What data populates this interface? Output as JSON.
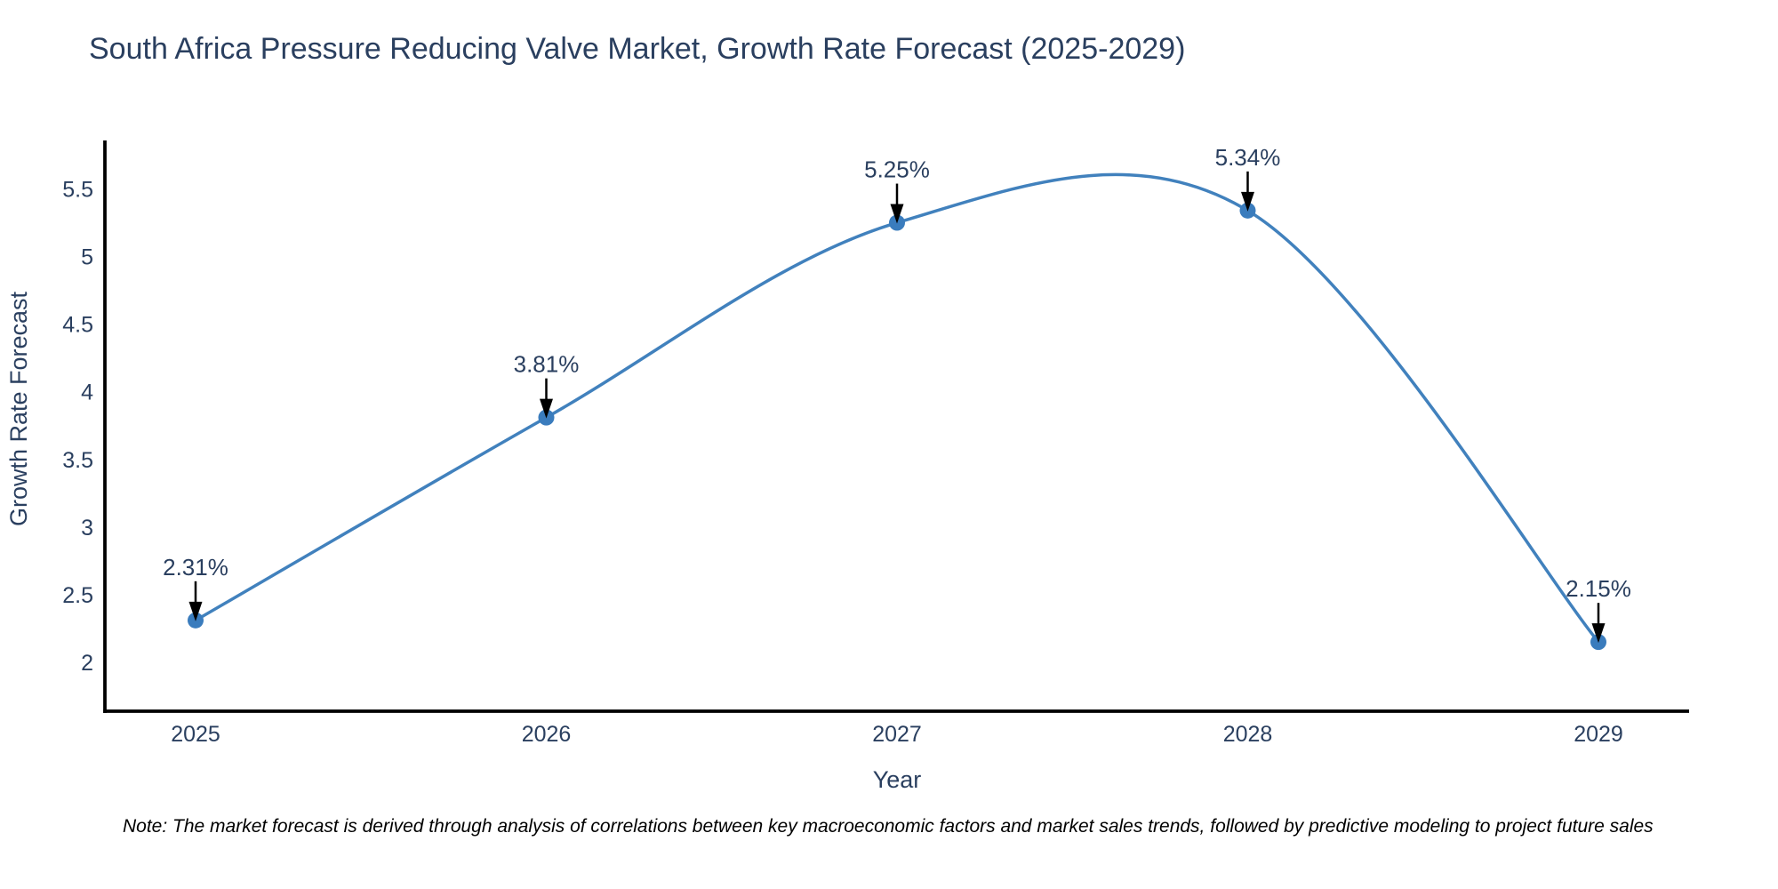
{
  "chart": {
    "title": "South Africa Pressure Reducing Valve Market, Growth Rate Forecast (2025-2029)",
    "xlabel": "Year",
    "ylabel": "Growth Rate Forecast"
  },
  "chart_data": {
    "type": "line",
    "title": "South Africa Pressure Reducing Valve Market, Growth Rate Forecast (2025-2029)",
    "xlabel": "Year",
    "ylabel": "Growth Rate Forecast",
    "line_shape": "spline",
    "grid": false,
    "legend": "none",
    "x": [
      2025,
      2026,
      2027,
      2028,
      2029
    ],
    "values": [
      2.31,
      3.81,
      5.25,
      5.34,
      2.15
    ],
    "point_labels": [
      "2.31%",
      "3.81%",
      "5.25%",
      "5.34%",
      "2.15%"
    ],
    "x_ticks": [
      2025,
      2026,
      2027,
      2028,
      2029
    ],
    "y_ticks": [
      2,
      2.5,
      3,
      3.5,
      4,
      4.5,
      5,
      5.5
    ],
    "xlim": [
      2024.74,
      2029.26
    ],
    "ylim": [
      1.64,
      5.85
    ],
    "colors": {
      "line": "#4181bd",
      "marker": "#3a7cbd",
      "arrow": "#000000",
      "axis": "#000000",
      "text": "#2a3f5f"
    }
  },
  "note": {
    "text": "Note: The market forecast is derived through analysis of correlations between key macroeconomic factors and market sales trends, followed by predictive modeling to project future sales"
  }
}
